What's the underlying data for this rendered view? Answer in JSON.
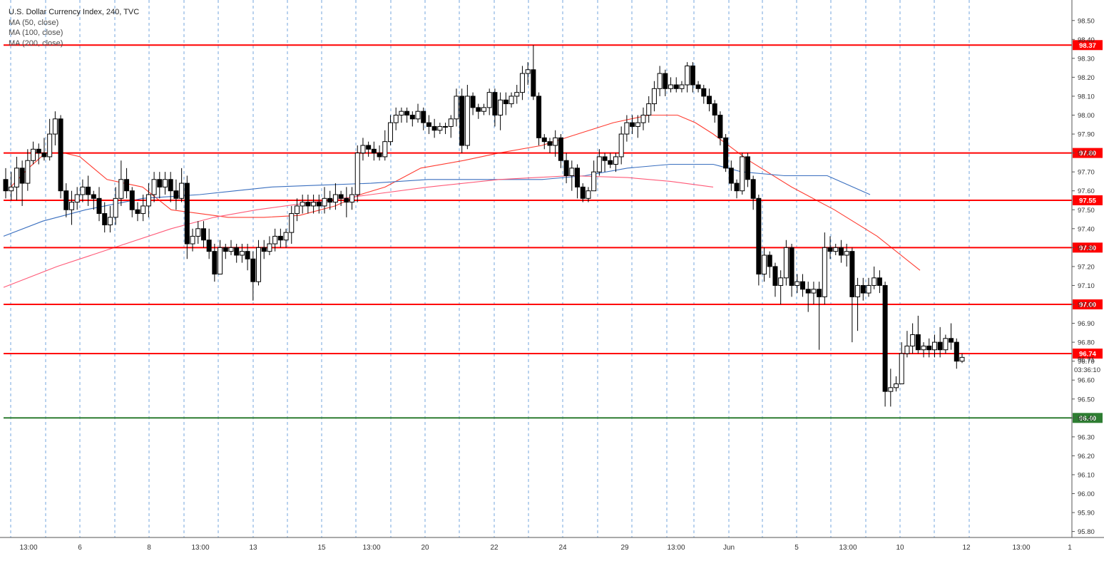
{
  "chart_data": {
    "type": "candlestick",
    "title": "U.S. Dollar Currency Index, 240, TVC",
    "legend": [
      "MA (50, close)",
      "MA (100, close)",
      "MA (200, close)"
    ],
    "ylim": [
      95.75,
      98.6
    ],
    "y_ticks": [
      95.8,
      95.9,
      96.0,
      96.1,
      96.2,
      96.3,
      96.4,
      96.5,
      96.6,
      96.7,
      96.8,
      96.9,
      97.0,
      97.1,
      97.2,
      97.3,
      97.4,
      97.5,
      97.6,
      97.7,
      97.8,
      97.9,
      98.0,
      98.1,
      98.2,
      98.3,
      98.4,
      98.5
    ],
    "x_labels": [
      "13:00",
      "6",
      "8",
      "13:00",
      "13",
      "15",
      "13:00",
      "20",
      "22",
      "24",
      "29",
      "13:00",
      "Jun",
      "5",
      "13:00",
      "10",
      "12",
      "13:00",
      "1"
    ],
    "horizontal_levels": [
      {
        "value": 98.37,
        "label": "98.37",
        "color": "#ff0000"
      },
      {
        "value": 97.8,
        "label": "97.80",
        "color": "#ff0000"
      },
      {
        "value": 97.55,
        "label": "97.55",
        "color": "#ff0000"
      },
      {
        "value": 97.3,
        "label": "97.30",
        "color": "#ff0000"
      },
      {
        "value": 97.0,
        "label": "97.00",
        "color": "#ff0000"
      },
      {
        "value": 96.74,
        "label": "96.74",
        "color": "#ff0000"
      },
      {
        "value": 96.4,
        "label": "96.40",
        "color": "#2e7d32"
      }
    ],
    "last_price": {
      "value": 96.71,
      "label": "96.71"
    },
    "countdown": "03:36:10",
    "grid": "vertical-dashed",
    "candles": [
      [
        97.66,
        97.6,
        97.72,
        97.56
      ],
      [
        97.6,
        97.62,
        97.7,
        97.55
      ],
      [
        97.62,
        97.72,
        97.78,
        97.55
      ],
      [
        97.72,
        97.64,
        97.76,
        97.52
      ],
      [
        97.64,
        97.76,
        97.82,
        97.6
      ],
      [
        97.76,
        97.82,
        97.86,
        97.74
      ],
      [
        97.82,
        97.8,
        97.85,
        97.74
      ],
      [
        97.8,
        97.78,
        97.88,
        97.76
      ],
      [
        97.78,
        97.9,
        97.98,
        97.76
      ],
      [
        97.9,
        97.98,
        98.02,
        97.84
      ],
      [
        97.98,
        97.6,
        98.0,
        97.56
      ],
      [
        97.6,
        97.5,
        97.64,
        97.46
      ],
      [
        97.5,
        97.54,
        97.6,
        97.42
      ],
      [
        97.54,
        97.58,
        97.62,
        97.5
      ],
      [
        97.58,
        97.62,
        97.66,
        97.54
      ],
      [
        97.62,
        97.58,
        97.68,
        97.52
      ],
      [
        97.58,
        97.56,
        97.6,
        97.5
      ],
      [
        97.56,
        97.48,
        97.62,
        97.44
      ],
      [
        97.48,
        97.42,
        97.54,
        97.38
      ],
      [
        97.42,
        97.46,
        97.52,
        97.38
      ],
      [
        97.46,
        97.56,
        97.62,
        97.42
      ],
      [
        97.56,
        97.66,
        97.76,
        97.52
      ],
      [
        97.66,
        97.6,
        97.72,
        97.56
      ],
      [
        97.6,
        97.5,
        97.62,
        97.46
      ],
      [
        97.5,
        97.48,
        97.54,
        97.44
      ],
      [
        97.48,
        97.52,
        97.58,
        97.44
      ],
      [
        97.52,
        97.58,
        97.64,
        97.46
      ],
      [
        97.58,
        97.66,
        97.7,
        97.54
      ],
      [
        97.66,
        97.62,
        97.7,
        97.56
      ],
      [
        97.62,
        97.66,
        97.7,
        97.58
      ],
      [
        97.66,
        97.6,
        97.7,
        97.54
      ],
      [
        97.6,
        97.56,
        97.66,
        97.5
      ],
      [
        97.56,
        97.64,
        97.72,
        97.54
      ],
      [
        97.64,
        97.32,
        97.68,
        97.24
      ],
      [
        97.32,
        97.36,
        97.4,
        97.28
      ],
      [
        97.36,
        97.4,
        97.44,
        97.32
      ],
      [
        97.4,
        97.34,
        97.44,
        97.3
      ],
      [
        97.34,
        97.28,
        97.4,
        97.24
      ],
      [
        97.28,
        97.16,
        97.32,
        97.12
      ],
      [
        97.16,
        97.3,
        97.34,
        97.18
      ],
      [
        97.3,
        97.28,
        97.32,
        97.24
      ],
      [
        97.28,
        97.3,
        97.34,
        97.26
      ],
      [
        97.3,
        97.26,
        97.32,
        97.22
      ],
      [
        97.26,
        97.28,
        97.32,
        97.22
      ],
      [
        97.28,
        97.24,
        97.32,
        97.18
      ],
      [
        97.24,
        97.12,
        97.28,
        97.02
      ],
      [
        97.12,
        97.3,
        97.34,
        97.1
      ],
      [
        97.3,
        97.28,
        97.34,
        97.24
      ],
      [
        97.28,
        97.32,
        97.36,
        97.26
      ],
      [
        97.32,
        97.36,
        97.4,
        97.28
      ],
      [
        97.36,
        97.34,
        97.4,
        97.3
      ],
      [
        97.34,
        97.38,
        97.4,
        97.3
      ],
      [
        97.38,
        97.48,
        97.52,
        97.32
      ],
      [
        97.48,
        97.52,
        97.56,
        97.44
      ],
      [
        97.52,
        97.54,
        97.58,
        97.48
      ],
      [
        97.54,
        97.52,
        97.58,
        97.48
      ],
      [
        97.52,
        97.54,
        97.58,
        97.48
      ],
      [
        97.54,
        97.52,
        97.58,
        97.48
      ],
      [
        97.52,
        97.56,
        97.62,
        97.48
      ],
      [
        97.56,
        97.54,
        97.6,
        97.5
      ],
      [
        97.54,
        97.58,
        97.64,
        97.5
      ],
      [
        97.58,
        97.56,
        97.6,
        97.52
      ],
      [
        97.56,
        97.54,
        97.62,
        97.46
      ],
      [
        97.54,
        97.58,
        97.62,
        97.5
      ],
      [
        97.58,
        97.8,
        97.84,
        97.54
      ],
      [
        97.8,
        97.84,
        97.88,
        97.76
      ],
      [
        97.84,
        97.82,
        97.86,
        97.78
      ],
      [
        97.82,
        97.8,
        97.86,
        97.76
      ],
      [
        97.8,
        97.78,
        97.84,
        97.76
      ],
      [
        97.78,
        97.86,
        97.92,
        97.76
      ],
      [
        97.86,
        97.96,
        98.0,
        97.84
      ],
      [
        97.96,
        98.0,
        98.04,
        97.92
      ],
      [
        98.0,
        98.02,
        98.04,
        97.96
      ],
      [
        98.02,
        98.0,
        98.04,
        97.96
      ],
      [
        98.0,
        97.98,
        98.02,
        97.94
      ],
      [
        97.98,
        98.02,
        98.06,
        97.96
      ],
      [
        98.02,
        97.96,
        98.04,
        97.92
      ],
      [
        97.96,
        97.94,
        98.0,
        97.9
      ],
      [
        97.94,
        97.92,
        97.98,
        97.88
      ],
      [
        97.92,
        97.94,
        97.96,
        97.9
      ],
      [
        97.94,
        97.94,
        97.96,
        97.9
      ],
      [
        97.94,
        97.98,
        98.0,
        97.88
      ],
      [
        97.98,
        98.1,
        98.14,
        97.94
      ],
      [
        98.1,
        97.84,
        98.14,
        97.8
      ],
      [
        97.84,
        98.1,
        98.16,
        97.82
      ],
      [
        98.1,
        98.04,
        98.12,
        98.0
      ],
      [
        98.04,
        98.02,
        98.06,
        97.98
      ],
      [
        98.02,
        98.04,
        98.06,
        98.0
      ],
      [
        98.04,
        98.12,
        98.14,
        98.0
      ],
      [
        98.12,
        98.0,
        98.14,
        97.94
      ],
      [
        98.0,
        98.08,
        98.12,
        97.92
      ],
      [
        98.08,
        98.06,
        98.12,
        98.0
      ],
      [
        98.06,
        98.1,
        98.12,
        98.04
      ],
      [
        98.1,
        98.12,
        98.16,
        98.06
      ],
      [
        98.12,
        98.22,
        98.26,
        98.08
      ],
      [
        98.22,
        98.24,
        98.28,
        98.16
      ],
      [
        98.24,
        98.1,
        98.37,
        98.08
      ],
      [
        98.1,
        97.88,
        98.12,
        97.84
      ],
      [
        97.88,
        97.86,
        97.9,
        97.82
      ],
      [
        97.86,
        97.84,
        97.88,
        97.8
      ],
      [
        97.84,
        97.88,
        97.92,
        97.78
      ],
      [
        97.88,
        97.76,
        97.9,
        97.72
      ],
      [
        97.76,
        97.68,
        97.8,
        97.64
      ],
      [
        97.68,
        97.72,
        97.76,
        97.6
      ],
      [
        97.72,
        97.62,
        97.74,
        97.56
      ],
      [
        97.62,
        97.56,
        97.64,
        97.54
      ],
      [
        97.56,
        97.6,
        97.62,
        97.54
      ],
      [
        97.6,
        97.7,
        97.76,
        97.6
      ],
      [
        97.7,
        97.78,
        97.82,
        97.68
      ],
      [
        97.78,
        97.76,
        97.8,
        97.7
      ],
      [
        97.76,
        97.74,
        97.8,
        97.72
      ],
      [
        97.74,
        97.78,
        97.8,
        97.7
      ],
      [
        97.78,
        97.9,
        97.94,
        97.74
      ],
      [
        97.9,
        97.96,
        98.0,
        97.86
      ],
      [
        97.96,
        97.94,
        98.0,
        97.9
      ],
      [
        97.94,
        97.96,
        98.0,
        97.88
      ],
      [
        97.96,
        98.0,
        98.04,
        97.92
      ],
      [
        98.0,
        98.06,
        98.1,
        97.96
      ],
      [
        98.06,
        98.14,
        98.18,
        98.02
      ],
      [
        98.14,
        98.22,
        98.26,
        98.1
      ],
      [
        98.22,
        98.14,
        98.24,
        98.1
      ],
      [
        98.14,
        98.16,
        98.2,
        98.12
      ],
      [
        98.16,
        98.14,
        98.2,
        98.12
      ],
      [
        98.14,
        98.16,
        98.18,
        98.12
      ],
      [
        98.16,
        98.26,
        98.28,
        98.12
      ],
      [
        98.26,
        98.16,
        98.28,
        98.12
      ],
      [
        98.16,
        98.14,
        98.18,
        98.12
      ],
      [
        98.14,
        98.1,
        98.16,
        98.06
      ],
      [
        98.1,
        98.06,
        98.14,
        98.02
      ],
      [
        98.06,
        98.0,
        98.08,
        97.96
      ],
      [
        98.0,
        97.88,
        98.02,
        97.84
      ],
      [
        97.88,
        97.72,
        97.9,
        97.7
      ],
      [
        97.72,
        97.64,
        97.76,
        97.6
      ],
      [
        97.64,
        97.6,
        97.66,
        97.56
      ],
      [
        97.6,
        97.78,
        97.8,
        97.58
      ],
      [
        97.78,
        97.66,
        97.8,
        97.62
      ],
      [
        97.66,
        97.56,
        97.68,
        97.5
      ],
      [
        97.56,
        97.16,
        97.58,
        97.1
      ],
      [
        97.16,
        97.26,
        97.3,
        97.12
      ],
      [
        97.26,
        97.2,
        97.28,
        97.14
      ],
      [
        97.2,
        97.1,
        97.22,
        97.04
      ],
      [
        97.1,
        97.14,
        97.18,
        97.0
      ],
      [
        97.14,
        97.3,
        97.34,
        97.1
      ],
      [
        97.3,
        97.1,
        97.32,
        97.04
      ],
      [
        97.1,
        97.12,
        97.16,
        97.06
      ],
      [
        97.12,
        97.08,
        97.16,
        97.04
      ],
      [
        97.08,
        97.06,
        97.12,
        96.96
      ],
      [
        97.06,
        97.08,
        97.12,
        97.0
      ],
      [
        97.08,
        97.04,
        97.12,
        96.76
      ],
      [
        97.04,
        97.3,
        97.38,
        97.0
      ],
      [
        97.3,
        97.28,
        97.36,
        97.24
      ],
      [
        97.28,
        97.3,
        97.32,
        97.26
      ],
      [
        97.3,
        97.26,
        97.34,
        97.22
      ],
      [
        97.26,
        97.28,
        97.32,
        97.2
      ],
      [
        97.28,
        97.04,
        97.3,
        96.8
      ],
      [
        97.04,
        97.1,
        97.14,
        96.86
      ],
      [
        97.1,
        97.06,
        97.14,
        97.02
      ],
      [
        97.06,
        97.1,
        97.14,
        97.04
      ],
      [
        97.1,
        97.14,
        97.2,
        97.08
      ],
      [
        97.14,
        97.1,
        97.18,
        97.06
      ],
      [
        97.1,
        96.54,
        97.12,
        96.46
      ],
      [
        96.54,
        96.56,
        96.66,
        96.46
      ],
      [
        96.56,
        96.58,
        96.62,
        96.54
      ],
      [
        96.58,
        96.74,
        96.8,
        96.68
      ],
      [
        96.74,
        96.78,
        96.86,
        96.72
      ],
      [
        96.78,
        96.84,
        96.9,
        96.74
      ],
      [
        96.84,
        96.76,
        96.94,
        96.74
      ],
      [
        96.76,
        96.78,
        96.8,
        96.72
      ],
      [
        96.78,
        96.76,
        96.82,
        96.72
      ],
      [
        96.76,
        96.8,
        96.84,
        96.72
      ],
      [
        96.8,
        96.76,
        96.88,
        96.72
      ],
      [
        96.76,
        96.82,
        96.84,
        96.74
      ],
      [
        96.82,
        96.8,
        96.9,
        96.76
      ],
      [
        96.8,
        96.7,
        96.82,
        96.66
      ],
      [
        96.7,
        96.72,
        96.74,
        96.69
      ]
    ],
    "ma50": [
      [
        97.62,
        97.72
      ],
      [
        97.8,
        97.8
      ],
      [
        97.78,
        97.66
      ],
      [
        97.62,
        97.5
      ],
      [
        97.48,
        97.46
      ],
      [
        97.46,
        97.47
      ],
      [
        97.52,
        97.58
      ],
      [
        97.62,
        97.72
      ],
      [
        97.76,
        97.8
      ],
      [
        97.84,
        97.9
      ],
      [
        97.96,
        98.0
      ],
      [
        98.0,
        97.96
      ],
      [
        97.9,
        97.76
      ],
      [
        97.62,
        97.5
      ],
      [
        97.36,
        97.18
      ]
    ],
    "ma100": [
      [
        97.36,
        97.44
      ],
      [
        97.5,
        97.56
      ],
      [
        97.58,
        97.6
      ],
      [
        97.62,
        97.63
      ],
      [
        97.64,
        97.66
      ],
      [
        97.66,
        97.66
      ],
      [
        97.68,
        97.72
      ],
      [
        97.74,
        97.74
      ],
      [
        97.7,
        97.68
      ],
      [
        97.68,
        97.58
      ]
    ],
    "ma200": [
      [
        97.09,
        97.2
      ],
      [
        97.3,
        97.4
      ],
      [
        97.46,
        97.5
      ],
      [
        97.54,
        97.58
      ],
      [
        97.62,
        97.66
      ],
      [
        97.68,
        97.67
      ],
      [
        97.65,
        97.62
      ]
    ]
  }
}
